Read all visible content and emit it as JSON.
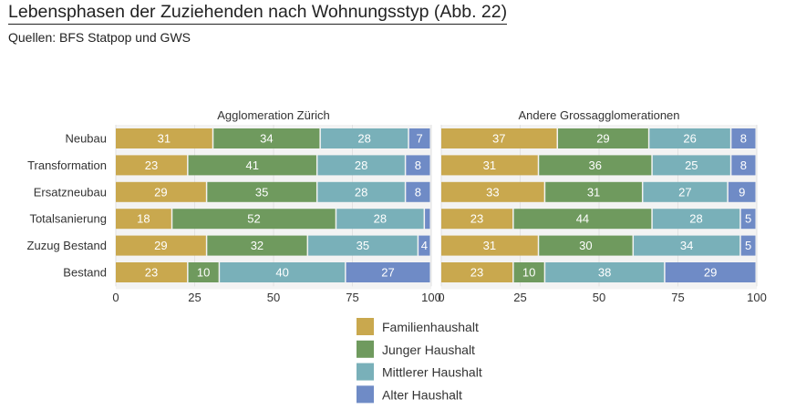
{
  "header": {
    "title": "Lebensphasen der Zuziehenden nach Wohnungsstyp  (Abb. 22)",
    "subtitle": "Quellen: BFS Statpop und GWS"
  },
  "chart_data": {
    "type": "bar",
    "orientation": "horizontal",
    "stacked": true,
    "categories": [
      "Neubau",
      "Transformation",
      "Ersatzneubau",
      "Totalsanierung",
      "Zuzug Bestand",
      "Bestand"
    ],
    "series_names": [
      "Familienhaushalt",
      "Junger Haushalt",
      "Mittlerer Haushalt",
      "Alter Haushalt"
    ],
    "colors": [
      "#c9a84e",
      "#6f9a5e",
      "#79b0b9",
      "#6f8bc6"
    ],
    "xlim": [
      0,
      100
    ],
    "ticks": [
      0,
      25,
      50,
      75,
      100
    ],
    "legend_position": "bottom",
    "panels": [
      {
        "title": "Agglomeration Zürich",
        "series": [
          {
            "name": "Familienhaushalt",
            "values": [
              31,
              23,
              29,
              18,
              29,
              23
            ]
          },
          {
            "name": "Junger Haushalt",
            "values": [
              34,
              41,
              35,
              52,
              32,
              10
            ]
          },
          {
            "name": "Mittlerer Haushalt",
            "values": [
              28,
              28,
              28,
              28,
              35,
              40
            ]
          },
          {
            "name": "Alter Haushalt",
            "values": [
              7,
              8,
              8,
              2,
              4,
              27
            ]
          }
        ]
      },
      {
        "title": "Andere Grossagglomerationen",
        "series": [
          {
            "name": "Familienhaushalt",
            "values": [
              37,
              31,
              33,
              23,
              31,
              23
            ]
          },
          {
            "name": "Junger Haushalt",
            "values": [
              29,
              36,
              31,
              44,
              30,
              10
            ]
          },
          {
            "name": "Mittlerer Haushalt",
            "values": [
              26,
              25,
              27,
              28,
              34,
              38
            ]
          },
          {
            "name": "Alter Haushalt",
            "values": [
              8,
              8,
              9,
              5,
              5,
              29
            ]
          }
        ]
      }
    ]
  }
}
